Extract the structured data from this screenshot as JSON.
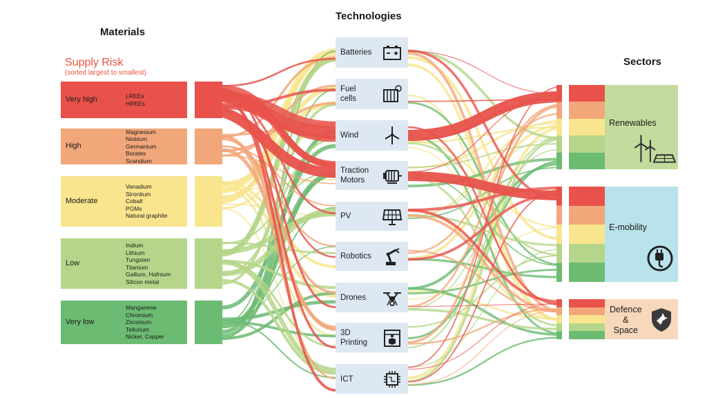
{
  "headers": {
    "materials": "Materials",
    "technologies": "Technologies",
    "sectors": "Sectors"
  },
  "supply_risk": {
    "title": "Supply Risk",
    "subtitle": "(sorted largest to smallest)"
  },
  "risk_colors": {
    "very_high": "#e8524b",
    "high": "#f2a77a",
    "moderate": "#f8e58d",
    "low": "#b5d68a",
    "very_low": "#6cbb72"
  },
  "risk_levels": [
    {
      "key": "very_high",
      "label": "Very high",
      "materials": [
        "LREEs",
        "HREEs"
      ]
    },
    {
      "key": "high",
      "label": "High",
      "materials": [
        "Magnesium",
        "Niobium",
        "Germanium",
        "Borates",
        "Scandium"
      ]
    },
    {
      "key": "moderate",
      "label": "Moderate",
      "materials": [
        "Vanadium",
        "Strontium",
        "Cobalt",
        "PGMs",
        "Natural graphite"
      ]
    },
    {
      "key": "low",
      "label": "Low",
      "materials": [
        "Indium",
        "Lithium",
        "Tungsten",
        "Titanium",
        "Gallium, Hafnium",
        "Silicon metal"
      ]
    },
    {
      "key": "very_low",
      "label": "Very low",
      "materials": [
        "Manganese",
        "Chromium",
        "Zirconium",
        "Tellurium",
        "Nickel, Copper"
      ]
    }
  ],
  "technologies": [
    {
      "label": "Batteries",
      "icon": "battery-icon"
    },
    {
      "label": "Fuel\ncells",
      "icon": "fuel-cell-icon"
    },
    {
      "label": "Wind",
      "icon": "wind-turbine-icon"
    },
    {
      "label": "Traction\nMotors",
      "icon": "electric-motor-icon"
    },
    {
      "label": "PV",
      "icon": "solar-panel-icon"
    },
    {
      "label": "Robotics",
      "icon": "robot-arm-icon"
    },
    {
      "label": "Drones",
      "icon": "drone-icon"
    },
    {
      "label": "3D\nPrinting",
      "icon": "3d-printer-icon"
    },
    {
      "label": "ICT",
      "icon": "microchip-icon"
    }
  ],
  "sectors": [
    {
      "label": "Renewables",
      "color": "#c3dc9e",
      "icon": "wind-solar-icon"
    },
    {
      "label": "E-mobility",
      "color": "#b9e3ea",
      "icon": "charging-plug-icon"
    },
    {
      "label": "Defence\n&\nSpace",
      "color": "#f7d8bc",
      "icon": "shield-bird-icon"
    }
  ]
}
